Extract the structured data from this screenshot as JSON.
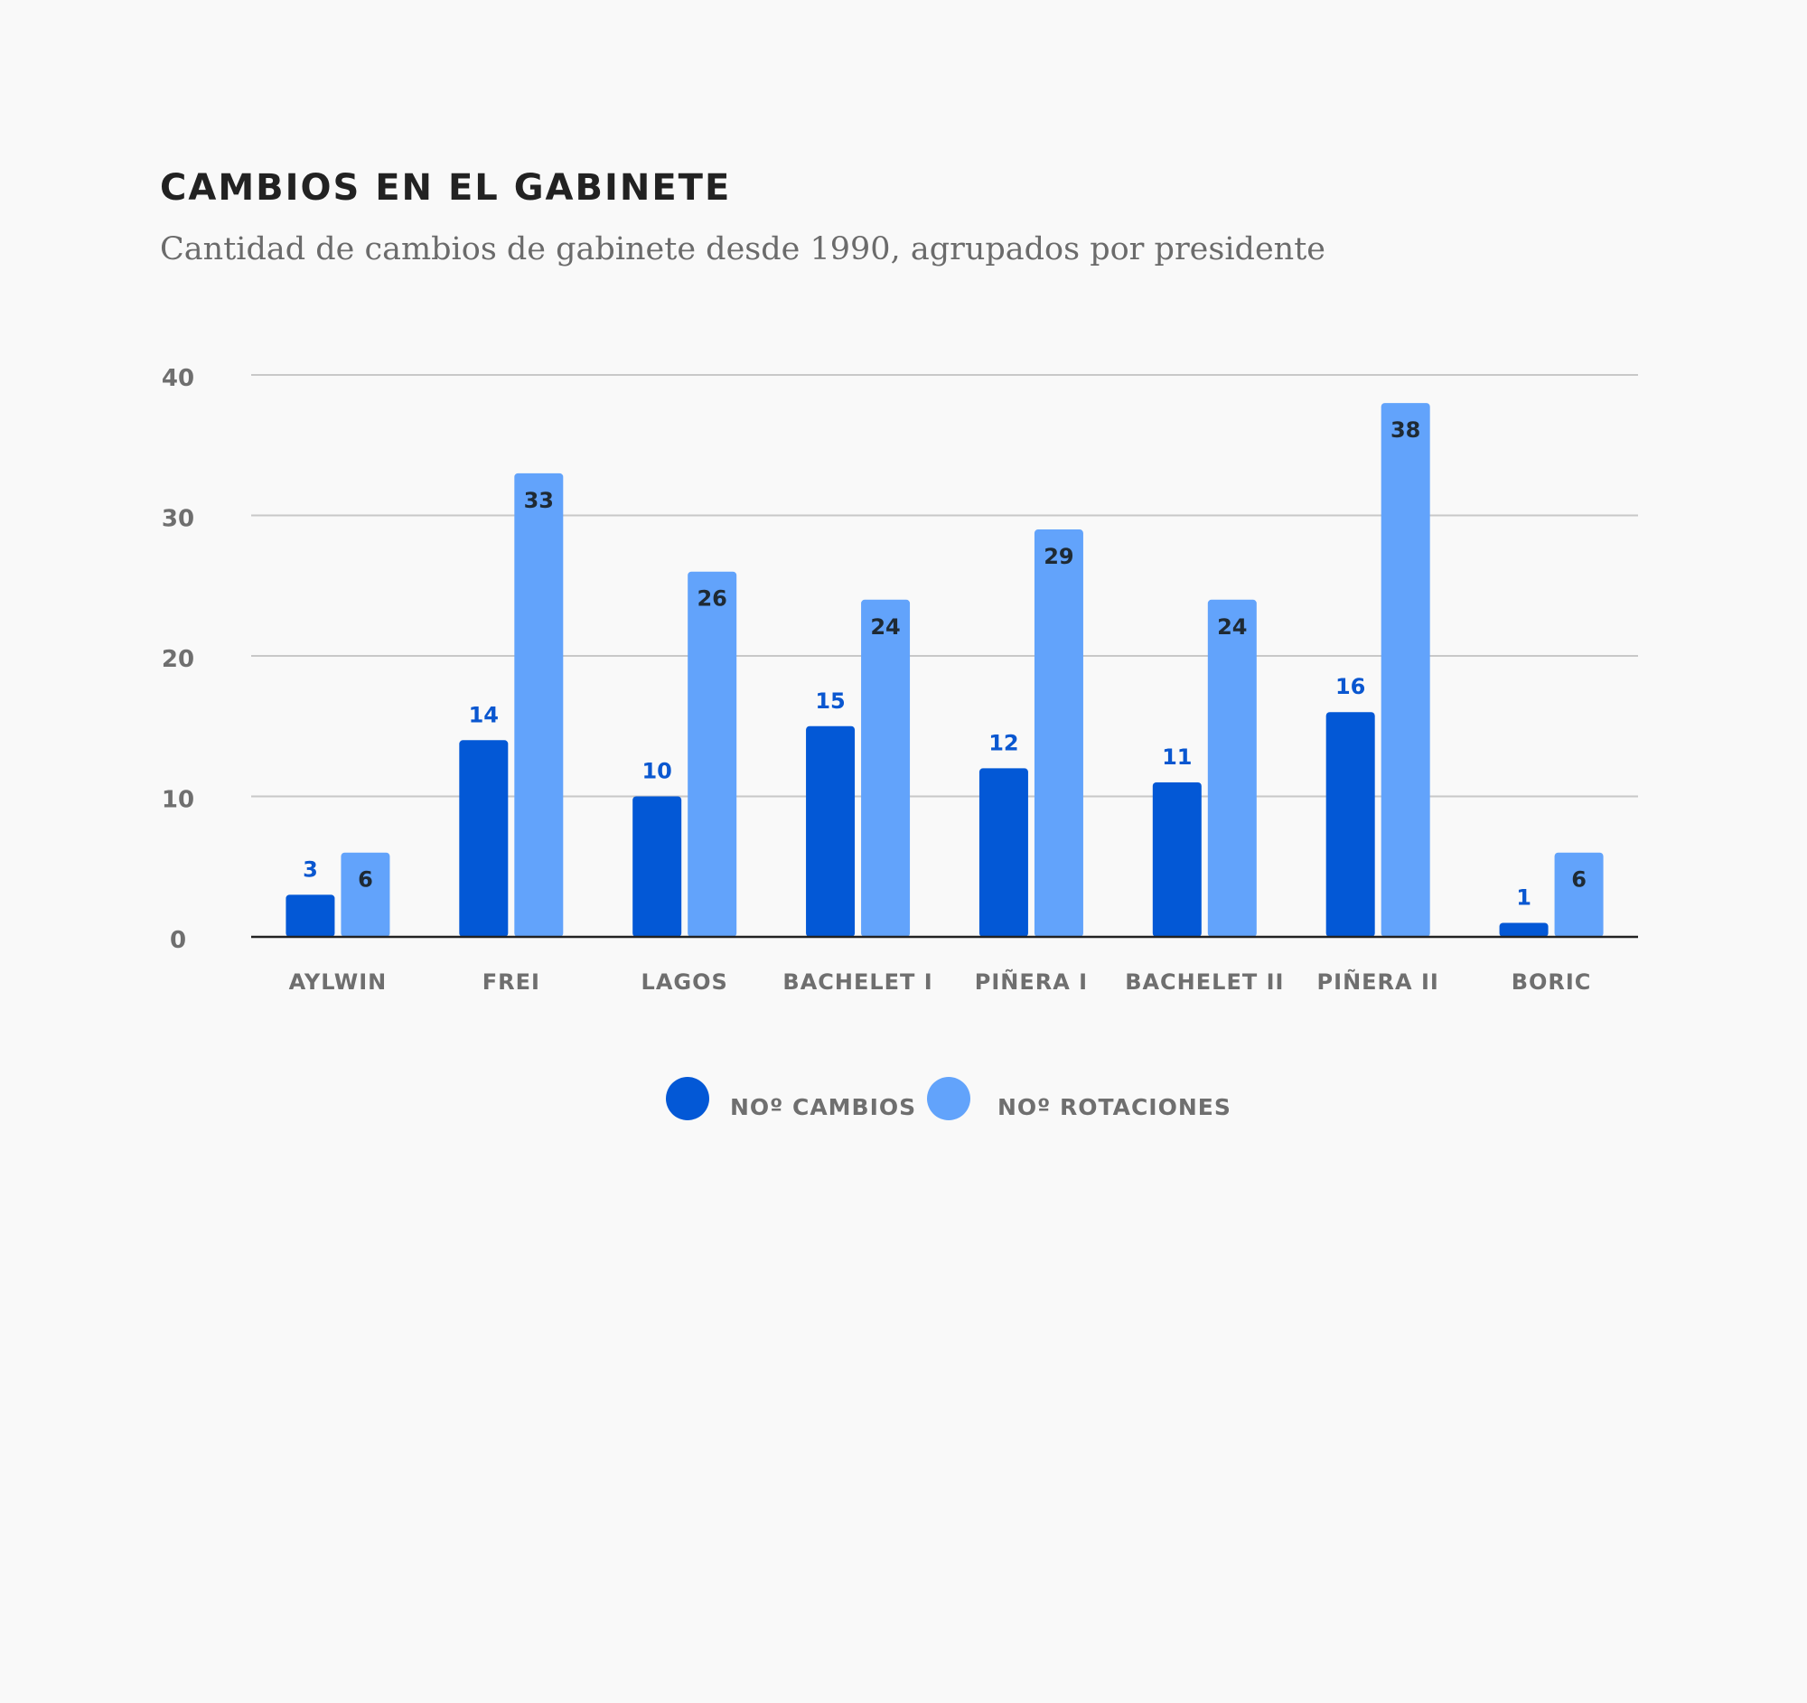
{
  "header": {
    "title": "CAMBIOS EN EL GABINETE",
    "subtitle": "Cantidad de cambios de gabinete desde 1990, agrupados por presidente"
  },
  "chart_data": {
    "type": "bar",
    "title": "CAMBIOS EN EL GABINETE",
    "subtitle": "Cantidad de cambios de gabinete desde 1990, agrupados por presidente",
    "categories": [
      "AYLWIN",
      "FREI",
      "LAGOS",
      "BACHELET I",
      "PIÑERA I",
      "BACHELET II",
      "PIÑERA II",
      "BORIC"
    ],
    "series": [
      {
        "name": "NOº CAMBIOS",
        "color": "#0358d6",
        "values": [
          3,
          14,
          10,
          15,
          12,
          11,
          16,
          1
        ]
      },
      {
        "name": "NOº ROTACIONES",
        "color": "#62a3fb",
        "values": [
          6,
          33,
          26,
          24,
          29,
          24,
          38,
          6
        ]
      }
    ],
    "ylim": [
      0,
      40
    ],
    "yticks": [
      0,
      10,
      20,
      30,
      40
    ],
    "xlabel": "",
    "ylabel": "",
    "grid": true,
    "legend_position": "bottom-center"
  }
}
